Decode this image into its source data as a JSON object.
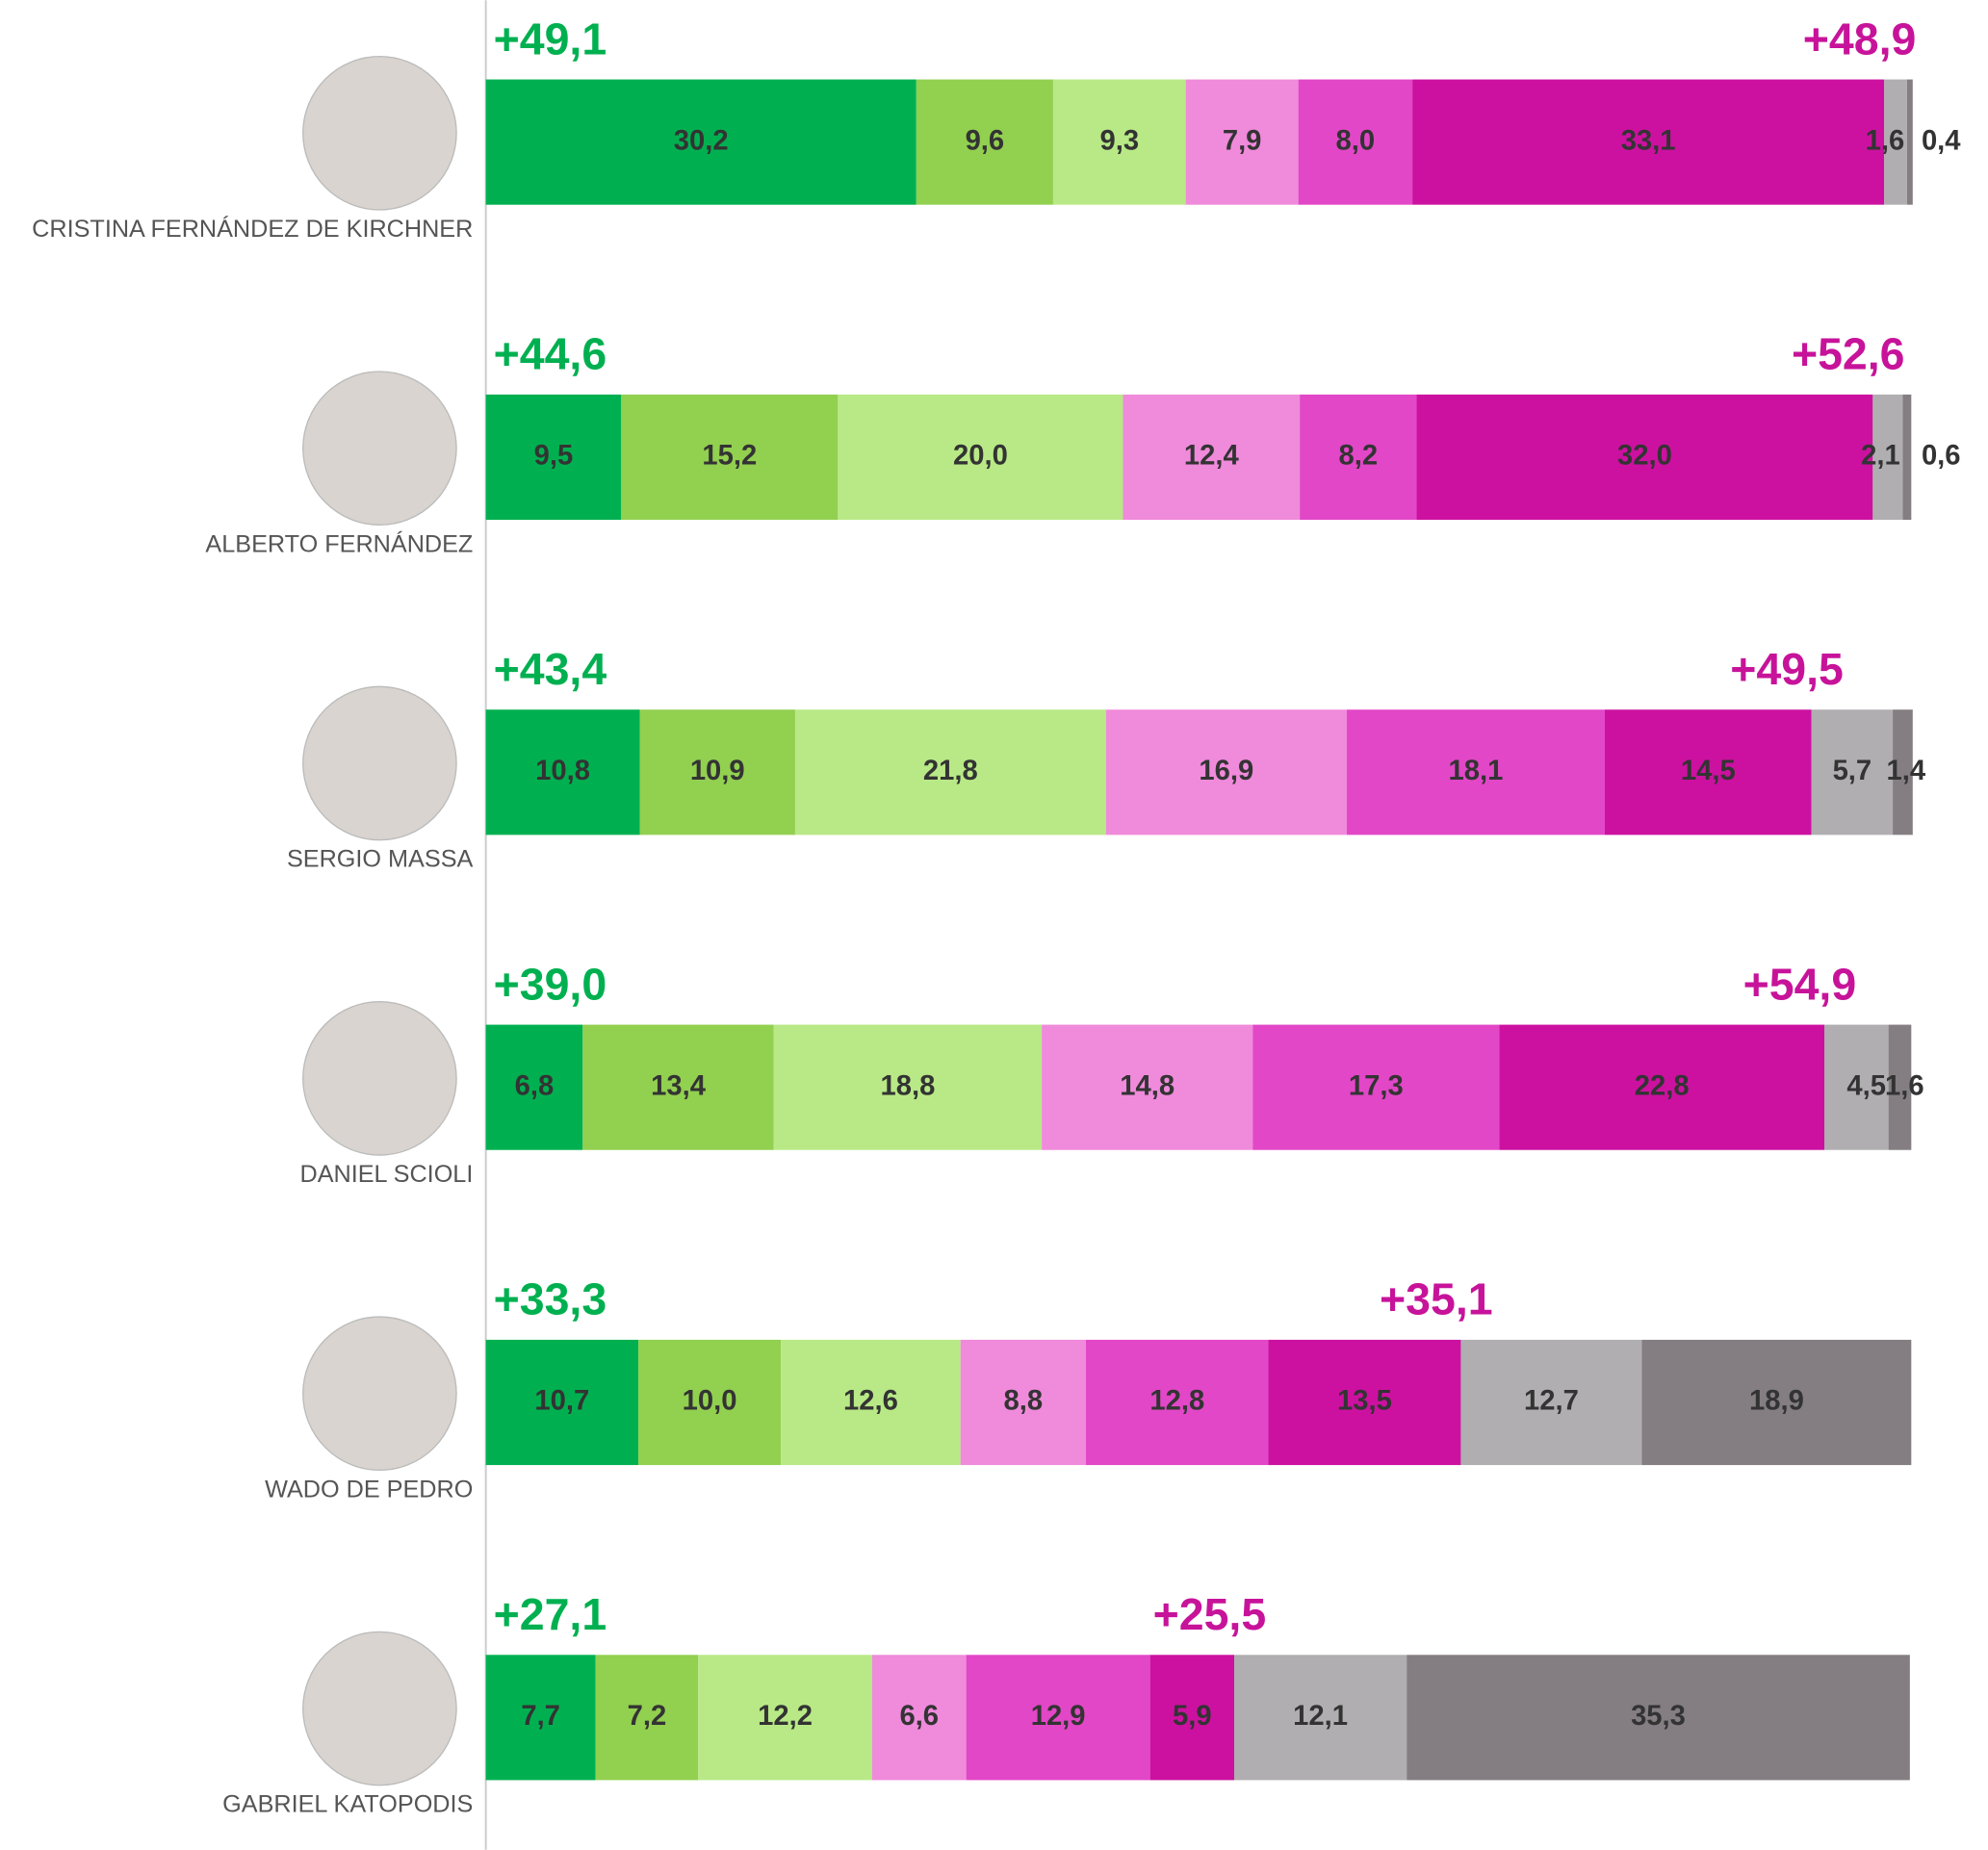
{
  "chart_data": {
    "type": "stacked-bar",
    "categories": [
      "CRISTINA FERNÁNDEZ DE KIRCHNER",
      "ALBERTO FERNÁNDEZ",
      "SERGIO MASSA",
      "DANIEL SCIOLI",
      "WADO DE PEDRO",
      "GABRIEL KATOPODIS"
    ],
    "xlim": [
      0,
      100
    ],
    "series": [
      {
        "color": "#00b050",
        "values": [
          30.2,
          9.5,
          10.8,
          6.8,
          10.7,
          7.7
        ],
        "value_labels": [
          "30,2",
          "9,5",
          "10,8",
          "6,8",
          "10,7",
          "7,7"
        ]
      },
      {
        "color": "#92d050",
        "values": [
          9.6,
          15.2,
          10.9,
          13.4,
          10.0,
          7.2
        ],
        "value_labels": [
          "9,6",
          "15,2",
          "10,9",
          "13,4",
          "10,0",
          "7,2"
        ]
      },
      {
        "color": "#b8e986",
        "values": [
          9.3,
          20.0,
          21.8,
          18.8,
          12.6,
          12.2
        ],
        "value_labels": [
          "9,3",
          "20,0",
          "21,8",
          "18,8",
          "12,6",
          "12,2"
        ]
      },
      {
        "color": "#f08adb",
        "values": [
          7.9,
          12.4,
          16.9,
          14.8,
          8.8,
          6.6
        ],
        "value_labels": [
          "7,9",
          "12,4",
          "16,9",
          "14,8",
          "8,8",
          "6,6"
        ]
      },
      {
        "color": "#e247c7",
        "values": [
          8.0,
          8.2,
          18.1,
          17.3,
          12.8,
          12.9
        ],
        "value_labels": [
          "8,0",
          "8,2",
          "18,1",
          "17,3",
          "12,8",
          "12,9"
        ]
      },
      {
        "color": "#cc11a0",
        "values": [
          33.1,
          32.0,
          14.5,
          22.8,
          13.5,
          5.9
        ],
        "value_labels": [
          "33,1",
          "32,0",
          "14,5",
          "22,8",
          "13,5",
          "5,9"
        ]
      },
      {
        "color": "#b0aeb0",
        "values": [
          1.6,
          2.1,
          5.7,
          4.5,
          12.7,
          12.1
        ],
        "value_labels": [
          "1,6",
          "2,1",
          "5,7",
          "4,5",
          "12,7",
          "12,1"
        ]
      },
      {
        "color": "#847e82",
        "values": [
          0.4,
          0.6,
          1.4,
          1.6,
          18.9,
          35.3
        ],
        "value_labels": [
          "0,4",
          "0,6",
          "1,4",
          "1,6",
          "18,9",
          "35,3"
        ]
      }
    ],
    "totals": [
      {
        "color": "#00b050",
        "values": [
          49.1,
          44.6,
          43.4,
          39.0,
          33.3,
          27.1
        ],
        "value_labels": [
          "+49,1",
          "+44,6",
          "+43,4",
          "+39,0",
          "+33,3",
          "+27,1"
        ]
      },
      {
        "color": "#c7139a",
        "values": [
          48.9,
          52.6,
          49.5,
          54.9,
          35.1,
          25.5
        ],
        "value_labels": [
          "+48,9",
          "+52,6",
          "+49,5",
          "+54,9",
          "+35,1",
          "+25,5"
        ]
      }
    ]
  }
}
